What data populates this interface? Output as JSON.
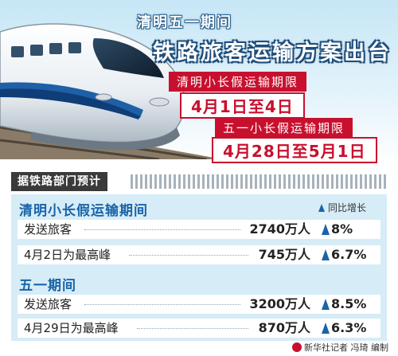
{
  "header": {
    "subtitle": "清明五一期间",
    "title": "铁路旅客运输方案出台"
  },
  "periods": {
    "qingming": {
      "label": "清明小长假运输期限",
      "value": "4月1日至4日"
    },
    "wuyi": {
      "label": "五一小长假运输期限",
      "value": "4月28日至5月1日"
    }
  },
  "forecast": {
    "label": "据铁路部门预计",
    "legend": "同比增长",
    "sections": [
      {
        "title": "清明小长假运输期间",
        "rows": [
          {
            "label": "发送旅客",
            "value": "2740万人",
            "growth": "8%"
          },
          {
            "label": "4月2日为最高峰",
            "value": "745万人",
            "growth": "6.7%"
          }
        ]
      },
      {
        "title": "五一期间",
        "rows": [
          {
            "label": "发送旅客",
            "value": "3200万人",
            "growth": "8.5%"
          },
          {
            "label": "4月29日为最高峰",
            "value": "870万人",
            "growth": "6.3%"
          }
        ]
      }
    ]
  },
  "footer": {
    "credit": "新华社记者 冯琦 编制"
  },
  "colors": {
    "accent_red": "#c8102e",
    "accent_blue": "#1a64a8",
    "panel": "#d6ecf7"
  }
}
